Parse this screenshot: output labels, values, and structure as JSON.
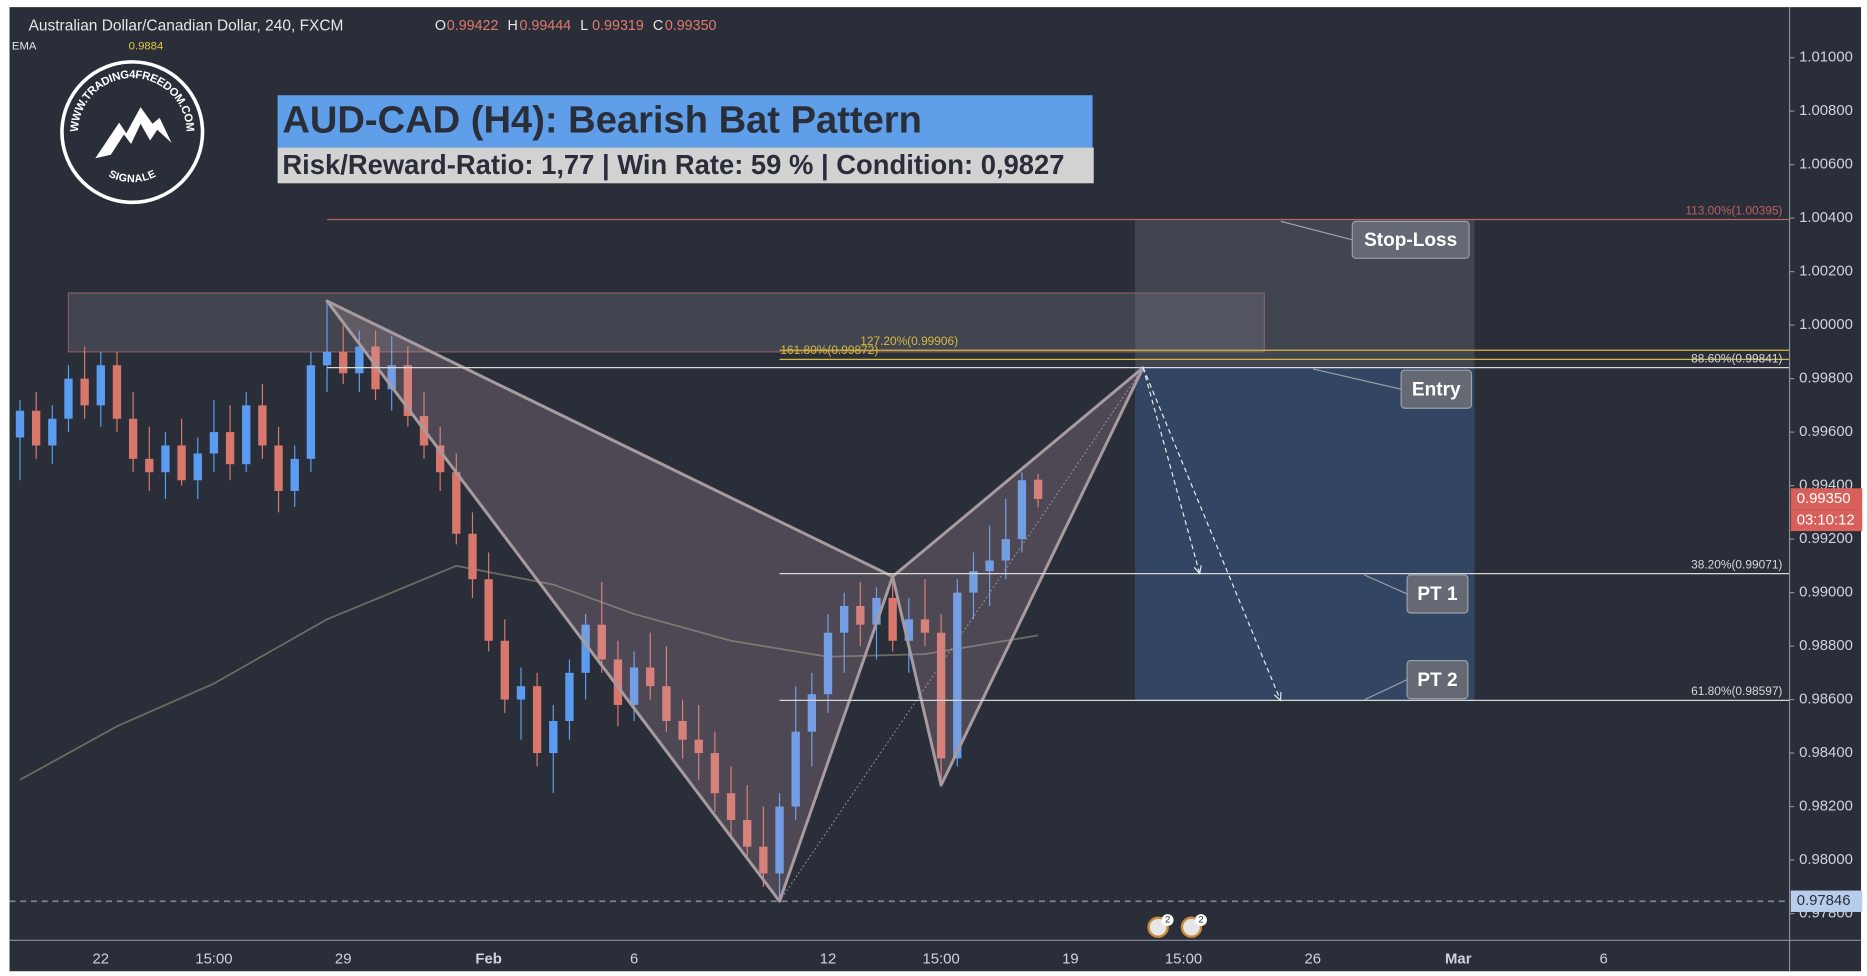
{
  "header": {
    "symbol": "Australian Dollar/Canadian Dollar, 240, FXCM",
    "ohlc": [
      {
        "key": "O",
        "value": "0.99422"
      },
      {
        "key": "H",
        "value": "0.99444"
      },
      {
        "key": "L",
        "value": "0.99319"
      },
      {
        "key": "C",
        "value": "0.99350"
      }
    ],
    "indicator": {
      "name": "EMA",
      "value": "0.9884"
    }
  },
  "logo": {
    "top": "WWW.TRADING4FREEDOM.COM",
    "bottom": "SIGNALE"
  },
  "events": [
    "2",
    "2"
  ],
  "chart_data": {
    "type": "candlestick",
    "title": "AUD-CAD (H4): Bearish Bat Pattern",
    "subtitle": "Risk/Reward-Ratio: 1,77 | Win Rate: 59 % | Condition: 0,9827",
    "categories": [
      null,
      null,
      null,
      null,
      null,
      "22",
      null,
      null,
      null,
      null,
      null,
      null,
      "15:00",
      null,
      null,
      null,
      null,
      null,
      null,
      null,
      "29",
      null,
      null,
      null,
      null,
      null,
      null,
      null,
      null,
      "Feb",
      null,
      null,
      null,
      null,
      null,
      null,
      null,
      null,
      "6",
      null,
      null,
      null,
      null,
      null,
      null,
      null,
      null,
      null,
      null,
      null,
      "12",
      null,
      null,
      null,
      null,
      null,
      null,
      "15:00",
      null,
      null,
      null,
      null,
      null,
      null,
      null,
      "19",
      null,
      null,
      null,
      null,
      null,
      null,
      "15:00",
      null,
      null,
      null,
      null,
      null,
      null,
      null,
      "26",
      null,
      null,
      null,
      null,
      null,
      null,
      null,
      null,
      "Mar",
      null,
      null,
      null,
      null,
      null,
      null,
      null,
      null,
      "6",
      null,
      null,
      null,
      null,
      null,
      null,
      null,
      null,
      null,
      null,
      null
    ],
    "ohlc": [
      [
        0.9958,
        0.9972,
        0.9942,
        0.9968
      ],
      [
        0.9968,
        0.9975,
        0.995,
        0.9955
      ],
      [
        0.9955,
        0.997,
        0.9948,
        0.9965
      ],
      [
        0.9965,
        0.9985,
        0.996,
        0.998
      ],
      [
        0.998,
        0.9992,
        0.9965,
        0.997
      ],
      [
        0.997,
        0.999,
        0.9962,
        0.9985
      ],
      [
        0.9985,
        0.999,
        0.996,
        0.9965
      ],
      [
        0.9965,
        0.9975,
        0.9945,
        0.995
      ],
      [
        0.995,
        0.9962,
        0.9938,
        0.9945
      ],
      [
        0.9945,
        0.996,
        0.9935,
        0.9955
      ],
      [
        0.9955,
        0.9965,
        0.994,
        0.9942
      ],
      [
        0.9942,
        0.9958,
        0.9935,
        0.9952
      ],
      [
        0.9952,
        0.9972,
        0.9945,
        0.996
      ],
      [
        0.996,
        0.997,
        0.9942,
        0.9948
      ],
      [
        0.9948,
        0.9975,
        0.9945,
        0.997
      ],
      [
        0.997,
        0.9978,
        0.995,
        0.9955
      ],
      [
        0.9955,
        0.9962,
        0.993,
        0.9938
      ],
      [
        0.9938,
        0.9955,
        0.9932,
        0.995
      ],
      [
        0.995,
        0.999,
        0.9945,
        0.9985
      ],
      [
        0.9985,
        1.0009,
        0.9975,
        0.999
      ],
      [
        0.999,
        1.0,
        0.9978,
        0.9982
      ],
      [
        0.9982,
        0.9998,
        0.9975,
        0.9992
      ],
      [
        0.9992,
        0.9998,
        0.9972,
        0.9976
      ],
      [
        0.9976,
        0.9996,
        0.9968,
        0.9985
      ],
      [
        0.9985,
        0.9992,
        0.9962,
        0.9966
      ],
      [
        0.9966,
        0.9975,
        0.995,
        0.9955
      ],
      [
        0.9955,
        0.9962,
        0.9938,
        0.9945
      ],
      [
        0.9945,
        0.9952,
        0.9918,
        0.9922
      ],
      [
        0.9922,
        0.993,
        0.9898,
        0.9905
      ],
      [
        0.9905,
        0.9915,
        0.9878,
        0.9882
      ],
      [
        0.9882,
        0.989,
        0.9855,
        0.986
      ],
      [
        0.986,
        0.9872,
        0.9845,
        0.9865
      ],
      [
        0.9865,
        0.987,
        0.9835,
        0.984
      ],
      [
        0.984,
        0.9858,
        0.9825,
        0.9852
      ],
      [
        0.9852,
        0.9875,
        0.9845,
        0.987
      ],
      [
        0.987,
        0.9892,
        0.986,
        0.9888
      ],
      [
        0.9888,
        0.9904,
        0.987,
        0.9875
      ],
      [
        0.9875,
        0.9882,
        0.985,
        0.9858
      ],
      [
        0.9858,
        0.9878,
        0.9852,
        0.9872
      ],
      [
        0.9872,
        0.9885,
        0.986,
        0.9865
      ],
      [
        0.9865,
        0.988,
        0.9848,
        0.9852
      ],
      [
        0.9852,
        0.986,
        0.9838,
        0.9845
      ],
      [
        0.9845,
        0.9858,
        0.983,
        0.984
      ],
      [
        0.984,
        0.9848,
        0.9818,
        0.9825
      ],
      [
        0.9825,
        0.9835,
        0.9808,
        0.9815
      ],
      [
        0.9815,
        0.9828,
        0.98,
        0.9805
      ],
      [
        0.9805,
        0.982,
        0.979,
        0.9795
      ],
      [
        0.9795,
        0.9825,
        0.97846,
        0.982
      ],
      [
        0.982,
        0.9865,
        0.9815,
        0.9848
      ],
      [
        0.9848,
        0.987,
        0.9835,
        0.9862
      ],
      [
        0.9862,
        0.9892,
        0.9855,
        0.9885
      ],
      [
        0.9885,
        0.99,
        0.987,
        0.9895
      ],
      [
        0.9895,
        0.9904,
        0.988,
        0.9888
      ],
      [
        0.9888,
        0.9902,
        0.9875,
        0.9898
      ],
      [
        0.9898,
        0.9906,
        0.9878,
        0.9882
      ],
      [
        0.9882,
        0.9898,
        0.987,
        0.989
      ],
      [
        0.989,
        0.9905,
        0.988,
        0.9885
      ],
      [
        0.9885,
        0.9892,
        0.9828,
        0.9838
      ],
      [
        0.9838,
        0.9905,
        0.9835,
        0.99
      ],
      [
        0.99,
        0.9915,
        0.989,
        0.9908
      ],
      [
        0.9908,
        0.9925,
        0.9895,
        0.9912
      ],
      [
        0.9912,
        0.9935,
        0.9905,
        0.992
      ],
      [
        0.992,
        0.9945,
        0.9915,
        0.9942
      ],
      [
        0.99422,
        0.99444,
        0.99319,
        0.9935
      ],
      null,
      null,
      null,
      null,
      null,
      null,
      null,
      null,
      null,
      null,
      null,
      null,
      null,
      null,
      null,
      null,
      null,
      null,
      null,
      null,
      null,
      null,
      null,
      null,
      null,
      null,
      null,
      null,
      null,
      null,
      null,
      null,
      null,
      null,
      null,
      null,
      null,
      null,
      null,
      null,
      null,
      null,
      null,
      null,
      null,
      null,
      null,
      null,
      null,
      null,
      null,
      null,
      null,
      null,
      null,
      null
    ],
    "up_color": "#5b9cf0",
    "down_color": "#d9776c",
    "ema": {
      "name": "EMA",
      "color": "#6e6a62",
      "x": [
        0,
        6,
        12,
        19,
        27,
        33,
        38,
        44,
        50,
        56,
        63
      ],
      "values": [
        0.983,
        0.985,
        0.9866,
        0.989,
        0.991,
        0.9903,
        0.9892,
        0.9882,
        0.9876,
        0.9877,
        0.9884
      ]
    },
    "pattern": {
      "x": [
        19,
        47,
        54,
        57,
        69.5
      ],
      "values": [
        1.0009,
        0.97846,
        0.9906,
        0.9828,
        0.99841
      ],
      "fill": "rgba(205,170,180,0.22)",
      "stroke": "#a89b9f"
    },
    "levels": [
      {
        "label": "113.00%(1.00395)",
        "value": 1.00395,
        "start": 19,
        "color": "#b86262"
      },
      {
        "label": "161.80%(0.99872)",
        "value": 0.99872,
        "start": 47,
        "color": "#d4b93c"
      },
      {
        "label": "127.20%(0.99906)",
        "value": 0.99906,
        "start": 47,
        "color": "#d4b93c"
      },
      {
        "label": "88.60%(0.99841)",
        "value": 0.99841,
        "start": 19,
        "color": "#d8d8d8"
      },
      {
        "label": "38.20%(0.99071)",
        "value": 0.99071,
        "start": 47,
        "color": "#d8d8d8"
      },
      {
        "label": "61.80%(0.98597)",
        "value": 0.98597,
        "start": 47,
        "color": "#d8d8d8"
      }
    ],
    "zones": [
      {
        "x": [
          3,
          77
        ],
        "values": [
          1.0012,
          0.999
        ],
        "fill": "rgba(190,190,200,0.16)",
        "stroke": "#8a5a60"
      },
      {
        "x": [
          69,
          90
        ],
        "values": [
          1.00395,
          0.99841
        ],
        "fill": "rgba(120,122,135,0.3)"
      },
      {
        "x": [
          69,
          90
        ],
        "values": [
          0.99841,
          0.98597
        ],
        "fill": "rgba(60,100,150,0.45)"
      }
    ],
    "arrows": [
      {
        "x": [
          69.5,
          73
        ],
        "values": [
          0.99841,
          0.99071
        ]
      },
      {
        "x": [
          69.5,
          78
        ],
        "values": [
          0.99841,
          0.98597
        ]
      }
    ],
    "annotations": [
      "Stop-Loss",
      "Entry",
      "PT 1",
      "PT 2"
    ],
    "last_price": {
      "value": 0.9935,
      "label": "0.99350"
    },
    "countdown": "03:10:12",
    "low_line": {
      "value": 0.97846,
      "label": "0.97846"
    },
    "ylim": [
      0.977,
      1.0118
    ],
    "yticks": [
      {
        "value": 1.01,
        "label": "1.01000"
      },
      {
        "value": 1.008,
        "label": "1.00800"
      },
      {
        "value": 1.006,
        "label": "1.00600"
      },
      {
        "value": 1.004,
        "label": "1.00400"
      },
      {
        "value": 1.002,
        "label": "1.00200"
      },
      {
        "value": 1.0,
        "label": "1.00000"
      },
      {
        "value": 0.998,
        "label": "0.99800"
      },
      {
        "value": 0.996,
        "label": "0.99600"
      },
      {
        "value": 0.994,
        "label": "0.99400"
      },
      {
        "value": 0.992,
        "label": "0.99200"
      },
      {
        "value": 0.99,
        "label": "0.99000"
      },
      {
        "value": 0.988,
        "label": "0.98800"
      },
      {
        "value": 0.986,
        "label": "0.98600"
      },
      {
        "value": 0.984,
        "label": "0.98400"
      },
      {
        "value": 0.982,
        "label": "0.98200"
      },
      {
        "value": 0.98,
        "label": "0.98000"
      },
      {
        "value": 0.978,
        "label": "0.97800"
      }
    ],
    "grid": false
  }
}
